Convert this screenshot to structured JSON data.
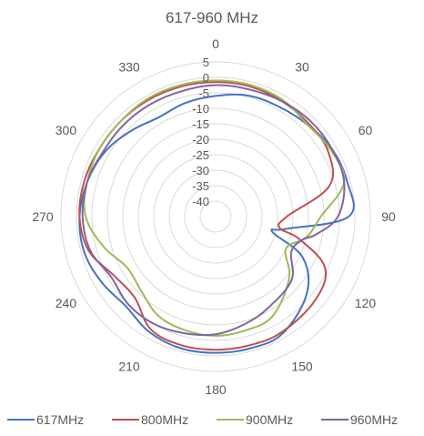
{
  "chart_data": {
    "type": "line",
    "subtype": "radar",
    "title": "617-960 MHz",
    "angle_unit": "degrees",
    "angle_direction": "clockwise",
    "angle_zero": "top",
    "angle_ticks": [
      0,
      30,
      60,
      90,
      120,
      150,
      180,
      210,
      240,
      270,
      300,
      330
    ],
    "angle_tick_labels": [
      "0",
      "30",
      "60",
      "90",
      "120",
      "150",
      "180",
      "210",
      "240",
      "270",
      "300",
      "330"
    ],
    "rlim": [
      -45,
      5
    ],
    "r_ticks": [
      5,
      0,
      -5,
      -10,
      -15,
      -20,
      -25,
      -30,
      -35,
      -40
    ],
    "r_tick_labels": [
      "5",
      "0",
      "-5",
      "-10",
      "-15",
      "-20",
      "-25",
      "-30",
      "-35",
      "-40"
    ],
    "grid": true,
    "legend": "bottom",
    "x": [
      0,
      15,
      30,
      45,
      60,
      75,
      90,
      100,
      105,
      115,
      130,
      150,
      165,
      180,
      195,
      210,
      225,
      240,
      255,
      270,
      285,
      300,
      315,
      330,
      345
    ],
    "series": [
      {
        "name": "617MHz",
        "color": "#4472C4",
        "values": [
          -6,
          -4.5,
          -4,
          -3,
          -1.5,
          -1,
          -2,
          -22,
          -26,
          -14,
          -6.5,
          -1.5,
          -1,
          -1,
          -1,
          -2,
          -4,
          -2.5,
          -1,
          -1,
          -2,
          -3.5,
          -6,
          -8,
          -7
        ]
      },
      {
        "name": "800MHz",
        "color": "#C0504D",
        "values": [
          -1.5,
          -1.5,
          -2,
          -2.5,
          -3,
          -7,
          -22,
          -24,
          -17,
          -6,
          -3,
          -2,
          -2,
          -2,
          -2,
          -3,
          -8,
          -7,
          -2.5,
          -1,
          -1,
          -1.5,
          -1.5,
          -1.5,
          -1.5
        ]
      },
      {
        "name": "900MHz",
        "color": "#9BBB59",
        "values": [
          -1,
          -1,
          -1.5,
          -3,
          -2,
          -2,
          -11,
          -14,
          -16,
          -20,
          -14,
          -8,
          -7,
          -6.5,
          -7,
          -8,
          -11,
          -12,
          -7.5,
          -3,
          -2,
          -1.5,
          -1.5,
          -1,
          -1
        ]
      },
      {
        "name": "960MHz",
        "color": "#8064A2",
        "values": [
          -2.5,
          -2.5,
          -2,
          -1.5,
          -1.5,
          -2,
          -5.5,
          -12,
          -16,
          -18,
          -13,
          -11,
          -9,
          -7,
          -6,
          -5,
          -5,
          -6,
          -3,
          -2,
          -2,
          -3,
          -3,
          -3,
          -3
        ]
      }
    ]
  }
}
